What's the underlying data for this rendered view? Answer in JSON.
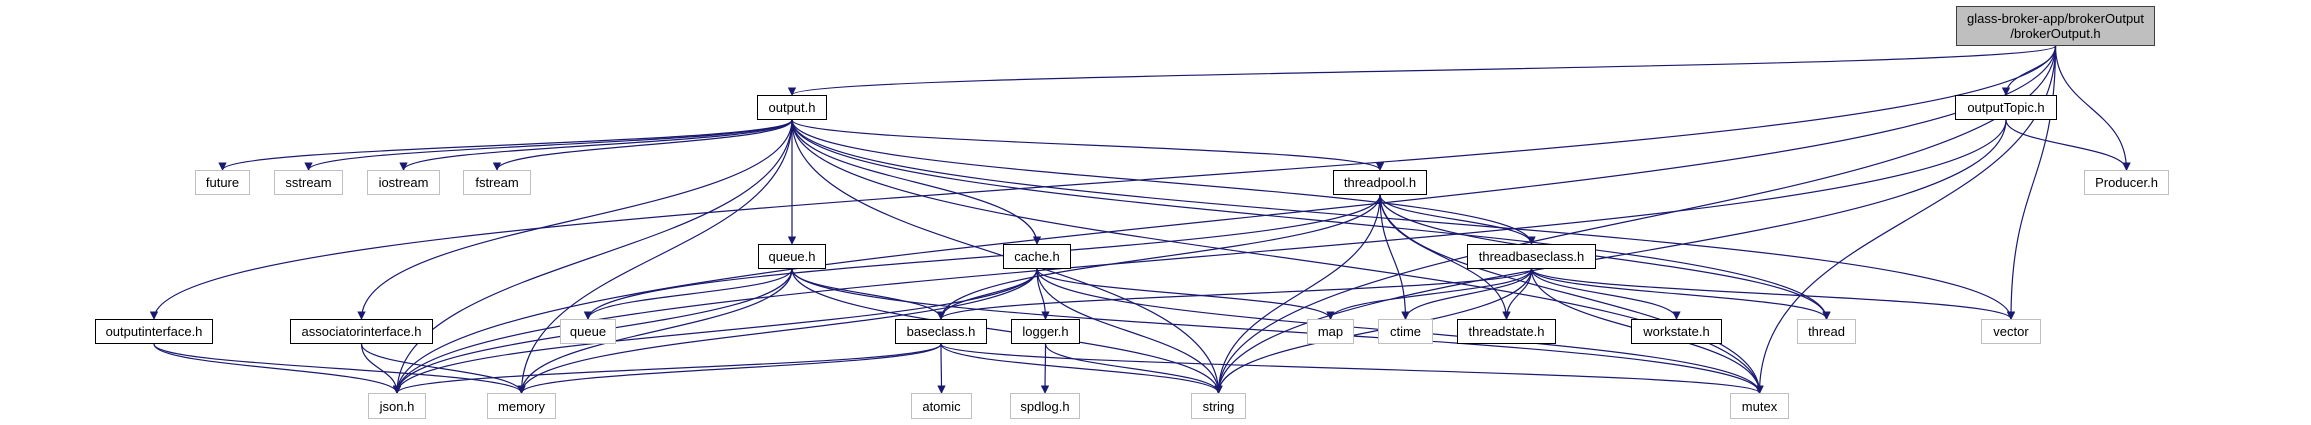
{
  "graph": {
    "edge_color": "#191970",
    "nodes": [
      {
        "id": "root",
        "label": "glass-broker-app/brokerOutput\n/brokerOutput.h",
        "kind": "root"
      },
      {
        "id": "output",
        "label": "output.h",
        "kind": "documented"
      },
      {
        "id": "outputTopic",
        "label": "outputTopic.h",
        "kind": "documented"
      },
      {
        "id": "producer",
        "label": "Producer.h",
        "kind": "external"
      },
      {
        "id": "future",
        "label": "future",
        "kind": "external"
      },
      {
        "id": "sstream",
        "label": "sstream",
        "kind": "external"
      },
      {
        "id": "iostream",
        "label": "iostream",
        "kind": "external"
      },
      {
        "id": "fstream",
        "label": "fstream",
        "kind": "external"
      },
      {
        "id": "threadpool",
        "label": "threadpool.h",
        "kind": "documented"
      },
      {
        "id": "queueh",
        "label": "queue.h",
        "kind": "documented"
      },
      {
        "id": "cache",
        "label": "cache.h",
        "kind": "documented"
      },
      {
        "id": "threadbaseclass",
        "label": "threadbaseclass.h",
        "kind": "documented"
      },
      {
        "id": "outputinterface",
        "label": "outputinterface.h",
        "kind": "documented"
      },
      {
        "id": "associatorinterface",
        "label": "associatorinterface.h",
        "kind": "documented"
      },
      {
        "id": "queue",
        "label": "queue",
        "kind": "external"
      },
      {
        "id": "baseclass",
        "label": "baseclass.h",
        "kind": "documented"
      },
      {
        "id": "logger",
        "label": "logger.h",
        "kind": "documented"
      },
      {
        "id": "map",
        "label": "map",
        "kind": "external"
      },
      {
        "id": "ctime",
        "label": "ctime",
        "kind": "external"
      },
      {
        "id": "threadstate",
        "label": "threadstate.h",
        "kind": "documented"
      },
      {
        "id": "workstate",
        "label": "workstate.h",
        "kind": "documented"
      },
      {
        "id": "thread",
        "label": "thread",
        "kind": "external"
      },
      {
        "id": "vector",
        "label": "vector",
        "kind": "external"
      },
      {
        "id": "json",
        "label": "json.h",
        "kind": "external"
      },
      {
        "id": "memory",
        "label": "memory",
        "kind": "external"
      },
      {
        "id": "atomic",
        "label": "atomic",
        "kind": "external"
      },
      {
        "id": "spdlog",
        "label": "spdlog.h",
        "kind": "external"
      },
      {
        "id": "string",
        "label": "string",
        "kind": "external"
      },
      {
        "id": "mutex",
        "label": "mutex",
        "kind": "external"
      }
    ],
    "edges": [
      [
        "root",
        "output"
      ],
      [
        "root",
        "outputTopic"
      ],
      [
        "root",
        "producer"
      ],
      [
        "root",
        "vector"
      ],
      [
        "root",
        "string"
      ],
      [
        "root",
        "mutex"
      ],
      [
        "root",
        "json"
      ],
      [
        "root",
        "outputinterface"
      ],
      [
        "output",
        "future"
      ],
      [
        "output",
        "sstream"
      ],
      [
        "output",
        "iostream"
      ],
      [
        "output",
        "fstream"
      ],
      [
        "output",
        "json"
      ],
      [
        "output",
        "memory"
      ],
      [
        "output",
        "associatorinterface"
      ],
      [
        "output",
        "queueh"
      ],
      [
        "output",
        "cache"
      ],
      [
        "output",
        "threadpool"
      ],
      [
        "output",
        "threadbaseclass"
      ],
      [
        "output",
        "thread"
      ],
      [
        "output",
        "vector"
      ],
      [
        "output",
        "mutex"
      ],
      [
        "output",
        "string"
      ],
      [
        "outputTopic",
        "producer"
      ],
      [
        "outputTopic",
        "string"
      ],
      [
        "outputTopic",
        "json"
      ],
      [
        "threadpool",
        "queue"
      ],
      [
        "threadpool",
        "baseclass"
      ],
      [
        "threadpool",
        "string"
      ],
      [
        "threadpool",
        "ctime"
      ],
      [
        "threadpool",
        "threadstate"
      ],
      [
        "threadpool",
        "threadbaseclass"
      ],
      [
        "threadpool",
        "thread"
      ],
      [
        "threadpool",
        "mutex"
      ],
      [
        "queueh",
        "queue"
      ],
      [
        "queueh",
        "json"
      ],
      [
        "queueh",
        "memory"
      ],
      [
        "queueh",
        "baseclass"
      ],
      [
        "queueh",
        "string"
      ],
      [
        "queueh",
        "mutex"
      ],
      [
        "cache",
        "baseclass"
      ],
      [
        "cache",
        "logger"
      ],
      [
        "cache",
        "string"
      ],
      [
        "cache",
        "map"
      ],
      [
        "cache",
        "mutex"
      ],
      [
        "cache",
        "json"
      ],
      [
        "cache",
        "memory"
      ],
      [
        "threadbaseclass",
        "baseclass"
      ],
      [
        "threadbaseclass",
        "map"
      ],
      [
        "threadbaseclass",
        "ctime"
      ],
      [
        "threadbaseclass",
        "threadstate"
      ],
      [
        "threadbaseclass",
        "workstate"
      ],
      [
        "threadbaseclass",
        "thread"
      ],
      [
        "threadbaseclass",
        "vector"
      ],
      [
        "threadbaseclass",
        "string"
      ],
      [
        "threadbaseclass",
        "mutex"
      ],
      [
        "baseclass",
        "atomic"
      ],
      [
        "baseclass",
        "json"
      ],
      [
        "baseclass",
        "memory"
      ],
      [
        "baseclass",
        "string"
      ],
      [
        "baseclass",
        "mutex"
      ],
      [
        "logger",
        "spdlog"
      ],
      [
        "logger",
        "string"
      ],
      [
        "outputinterface",
        "json"
      ],
      [
        "outputinterface",
        "memory"
      ],
      [
        "associatorinterface",
        "json"
      ],
      [
        "associatorinterface",
        "memory"
      ]
    ]
  }
}
